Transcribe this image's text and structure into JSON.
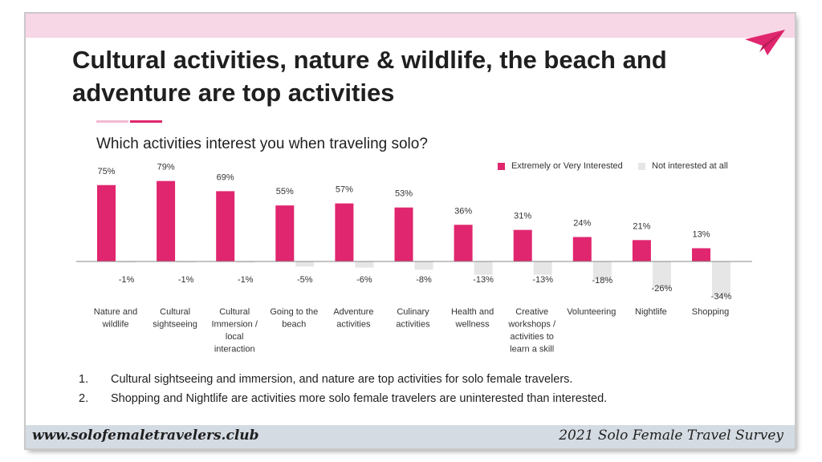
{
  "colors": {
    "accent": "#e0266e",
    "neutral": "#e6e6e6",
    "top_band": "#f7d6e6",
    "footer_band": "#d4dbe2"
  },
  "slide": {
    "title": "Cultural activities, nature & wildlife, the beach and adventure are top activities",
    "question": "Which activities interest you when traveling solo?",
    "icon": "paper-plane-icon"
  },
  "legend": {
    "interested": "Extremely or Very Interested",
    "not_interested": "Not interested at all"
  },
  "chart_data": {
    "type": "bar",
    "categories": [
      "Nature and wildlife",
      "Cultural sightseeing",
      "Cultural Immersion / local interaction",
      "Going to the beach",
      "Adventure activities",
      "Culinary activities",
      "Health and wellness",
      "Creative workshops / activities to learn a skill",
      "Volunteering",
      "Nightlife",
      "Shopping"
    ],
    "category_lines": [
      [
        "Nature and",
        "wildlife"
      ],
      [
        "Cultural",
        "sightseeing"
      ],
      [
        "Cultural",
        "Immersion /",
        "local",
        "interaction"
      ],
      [
        "Going to the",
        "beach"
      ],
      [
        "Adventure",
        "activities"
      ],
      [
        "Culinary",
        "activities"
      ],
      [
        "Health and",
        "wellness"
      ],
      [
        "Creative",
        "workshops /",
        "activities to",
        "learn a skill"
      ],
      [
        "Volunteering"
      ],
      [
        "Nightlife"
      ],
      [
        "Shopping"
      ]
    ],
    "series": [
      {
        "name": "Extremely or Very Interested",
        "values": [
          75,
          79,
          69,
          55,
          57,
          53,
          36,
          31,
          24,
          21,
          13
        ],
        "labels": [
          "75%",
          "79%",
          "69%",
          "55%",
          "57%",
          "53%",
          "36%",
          "31%",
          "24%",
          "21%",
          "13%"
        ]
      },
      {
        "name": "Not interested at all",
        "values": [
          -1,
          -1,
          -1,
          -5,
          -6,
          -8,
          -13,
          -13,
          -18,
          -26,
          -34
        ],
        "labels": [
          "-1%",
          "-1%",
          "-1%",
          "-5%",
          "-6%",
          "-8%",
          "-13%",
          "-13%",
          "-18%",
          "-26%",
          "-34%"
        ]
      }
    ],
    "legend_position": "top-right",
    "grid": false
  },
  "takeaways": [
    {
      "num": "1.",
      "text": "Cultural sightseeing and immersion, and nature are top activities for solo female travelers."
    },
    {
      "num": "2.",
      "text": "Shopping and Nightlife are activities more solo female travelers are uninterested than interested."
    }
  ],
  "footer": {
    "website": "www.solofemaletravelers.club",
    "survey": "2021 Solo Female Travel Survey"
  }
}
